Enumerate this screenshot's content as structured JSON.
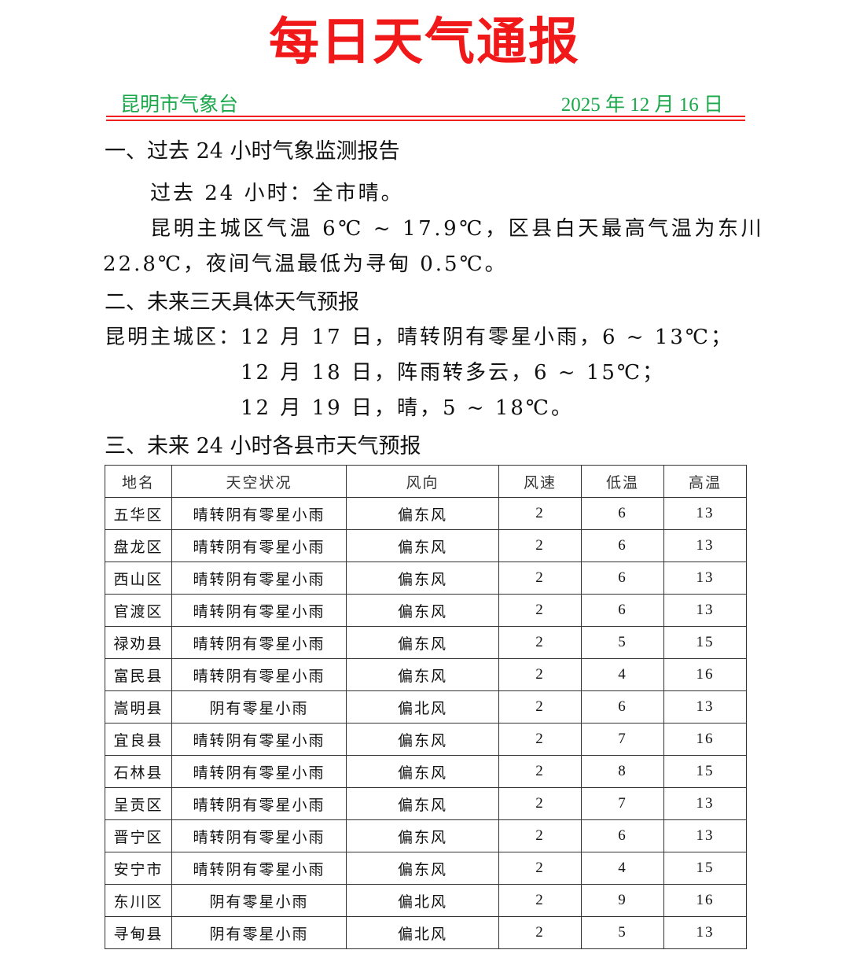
{
  "title": "每日天气通报",
  "org": "昆明市气象台",
  "date": "2025 年 12 月 16 日",
  "section1": {
    "heading": "一、过去 24 小时气象监测报告",
    "line1": "过去 24 小时：全市晴。",
    "line2": "昆明主城区气温 6℃ ~ 17.9℃，区县白天最高气温为东川",
    "line3": "22.8℃，夜间气温最低为寻甸 0.5℃。"
  },
  "section2": {
    "heading": "二、未来三天具体天气预报",
    "label": "昆明主城区：",
    "day1": "12 月 17 日，晴转阴有零星小雨，6 ~ 13℃；",
    "day2": "12 月 18 日，阵雨转多云，6 ~ 15℃；",
    "day3": "12 月 19 日，晴，5 ~ 18℃。"
  },
  "section3": {
    "heading": "三、未来 24 小时各县市天气预报"
  },
  "table": {
    "headers": [
      "地名",
      "天空状况",
      "风向",
      "风速",
      "低温",
      "高温"
    ],
    "rows": [
      [
        "五华区",
        "晴转阴有零星小雨",
        "偏东风",
        "2",
        "6",
        "13"
      ],
      [
        "盘龙区",
        "晴转阴有零星小雨",
        "偏东风",
        "2",
        "6",
        "13"
      ],
      [
        "西山区",
        "晴转阴有零星小雨",
        "偏东风",
        "2",
        "6",
        "13"
      ],
      [
        "官渡区",
        "晴转阴有零星小雨",
        "偏东风",
        "2",
        "6",
        "13"
      ],
      [
        "禄劝县",
        "晴转阴有零星小雨",
        "偏东风",
        "2",
        "5",
        "15"
      ],
      [
        "富民县",
        "晴转阴有零星小雨",
        "偏东风",
        "2",
        "4",
        "16"
      ],
      [
        "嵩明县",
        "阴有零星小雨",
        "偏北风",
        "2",
        "6",
        "13"
      ],
      [
        "宜良县",
        "晴转阴有零星小雨",
        "偏东风",
        "2",
        "7",
        "16"
      ],
      [
        "石林县",
        "晴转阴有零星小雨",
        "偏东风",
        "2",
        "8",
        "15"
      ],
      [
        "呈贡区",
        "晴转阴有零星小雨",
        "偏东风",
        "2",
        "7",
        "13"
      ],
      [
        "晋宁区",
        "晴转阴有零星小雨",
        "偏东风",
        "2",
        "6",
        "13"
      ],
      [
        "安宁市",
        "晴转阴有零星小雨",
        "偏东风",
        "2",
        "4",
        "15"
      ],
      [
        "东川区",
        "阴有零星小雨",
        "偏北风",
        "2",
        "9",
        "16"
      ],
      [
        "寻甸县",
        "阴有零星小雨",
        "偏北风",
        "2",
        "5",
        "13"
      ]
    ]
  },
  "colors": {
    "title": "#f01818",
    "header_green": "#1aa84a",
    "rule": "#f02020"
  }
}
